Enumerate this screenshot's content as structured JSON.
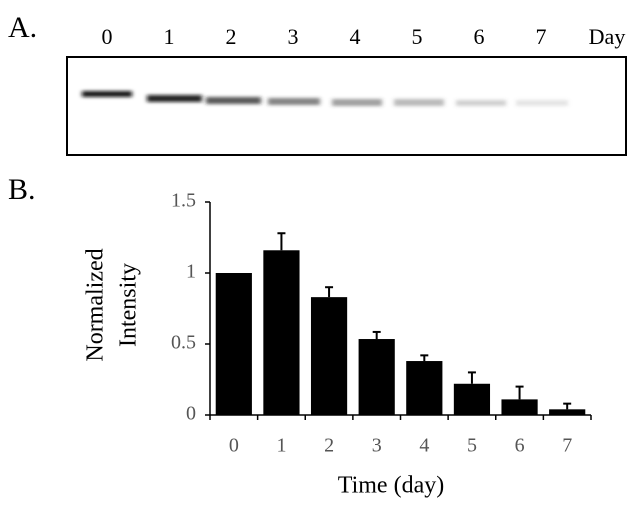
{
  "panel_a": {
    "label": "A.",
    "lanes": [
      "0",
      "1",
      "2",
      "3",
      "4",
      "5",
      "6",
      "7"
    ],
    "unit": "Day"
  },
  "panel_b_label": "B.",
  "chart_data": {
    "type": "bar",
    "y_label_lines": [
      "Normalized",
      "Intensity"
    ],
    "x_label": "Time (day)",
    "categories": [
      "0",
      "1",
      "2",
      "3",
      "4",
      "5",
      "6",
      "7"
    ],
    "values": [
      1.0,
      1.16,
      0.83,
      0.535,
      0.38,
      0.22,
      0.11,
      0.04
    ],
    "errors": [
      0,
      0.12,
      0.07,
      0.05,
      0.04,
      0.08,
      0.09,
      0.04
    ],
    "color": "#000000",
    "ylim": [
      0,
      1.5
    ],
    "yticks": [
      0,
      0.5,
      1,
      1.5
    ],
    "grid": false
  }
}
